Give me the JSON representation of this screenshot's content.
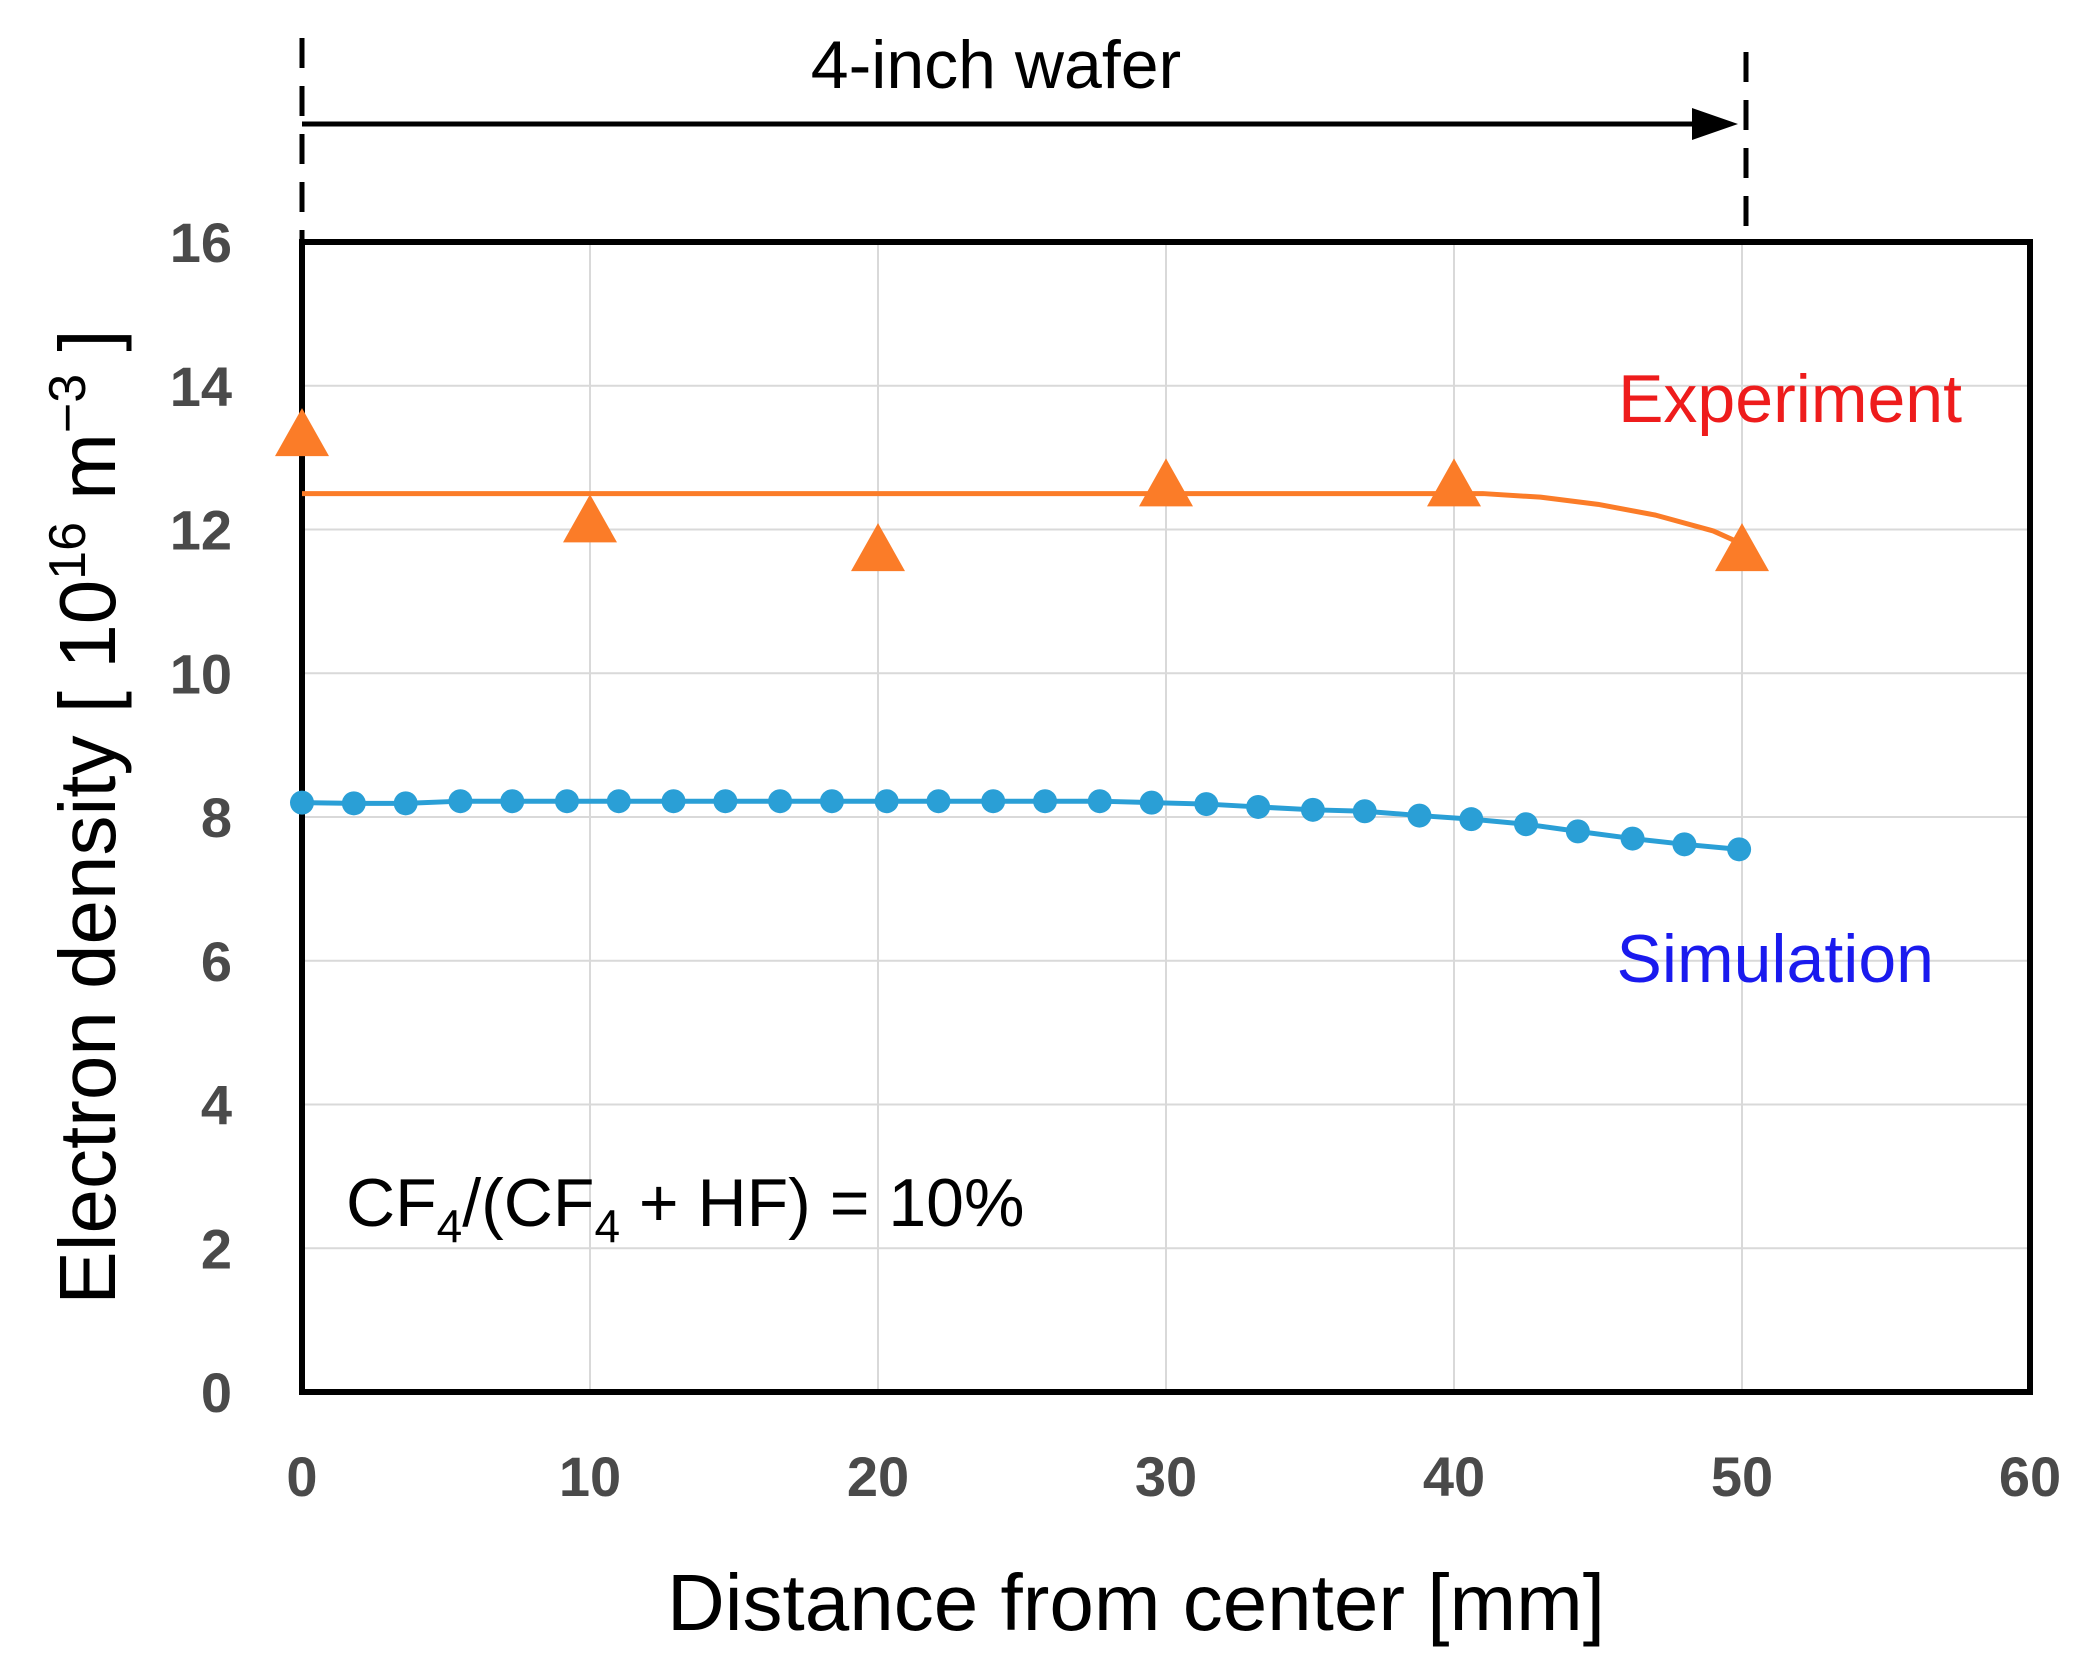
{
  "chart_data": {
    "type": "line",
    "xlabel": "Distance from center [mm]",
    "ylabel": {
      "prefix": "Electron density [ 10",
      "exp1": "16",
      "mid": " m",
      "exp2": "−3",
      "suffix": " ]"
    },
    "xlim": [
      0,
      60
    ],
    "ylim": [
      0,
      16
    ],
    "xticks": [
      0,
      10,
      20,
      30,
      40,
      50,
      60
    ],
    "yticks": [
      0,
      2,
      4,
      6,
      8,
      10,
      12,
      14,
      16
    ],
    "grid": true,
    "series": [
      {
        "name": "Experiment",
        "label_text": "Experiment",
        "label_color": "#ee1c1c",
        "color": "#fb7c28",
        "marker": "triangle",
        "points": [
          {
            "x": 0,
            "y": 13.3
          },
          {
            "x": 10,
            "y": 12.1
          },
          {
            "x": 20,
            "y": 11.7
          },
          {
            "x": 30,
            "y": 12.6
          },
          {
            "x": 40,
            "y": 12.6
          },
          {
            "x": 50,
            "y": 11.7
          }
        ],
        "fit_line": [
          {
            "x": 0,
            "y": 12.5
          },
          {
            "x": 41,
            "y": 12.5
          },
          {
            "x": 43,
            "y": 12.45
          },
          {
            "x": 45,
            "y": 12.35
          },
          {
            "x": 47,
            "y": 12.2
          },
          {
            "x": 49,
            "y": 11.98
          },
          {
            "x": 50,
            "y": 11.8
          }
        ]
      },
      {
        "name": "Simulation",
        "label_text": "Simulation",
        "label_color": "#1a1aee",
        "color": "#2a9fd6",
        "marker": "circle",
        "points": [
          {
            "x": 0,
            "y": 8.2
          },
          {
            "x": 1.8,
            "y": 8.19
          },
          {
            "x": 3.6,
            "y": 8.19
          },
          {
            "x": 5.5,
            "y": 8.22
          },
          {
            "x": 7.3,
            "y": 8.22
          },
          {
            "x": 9.2,
            "y": 8.22
          },
          {
            "x": 11.0,
            "y": 8.22
          },
          {
            "x": 12.9,
            "y": 8.22
          },
          {
            "x": 14.7,
            "y": 8.22
          },
          {
            "x": 16.6,
            "y": 8.22
          },
          {
            "x": 18.4,
            "y": 8.22
          },
          {
            "x": 20.3,
            "y": 8.22
          },
          {
            "x": 22.1,
            "y": 8.22
          },
          {
            "x": 24.0,
            "y": 8.22
          },
          {
            "x": 25.8,
            "y": 8.22
          },
          {
            "x": 27.7,
            "y": 8.22
          },
          {
            "x": 29.5,
            "y": 8.2
          },
          {
            "x": 31.4,
            "y": 8.18
          },
          {
            "x": 33.2,
            "y": 8.14
          },
          {
            "x": 35.1,
            "y": 8.1
          },
          {
            "x": 36.9,
            "y": 8.08
          },
          {
            "x": 38.8,
            "y": 8.02
          },
          {
            "x": 40.6,
            "y": 7.97
          },
          {
            "x": 42.5,
            "y": 7.9
          },
          {
            "x": 44.3,
            "y": 7.8
          },
          {
            "x": 46.2,
            "y": 7.7
          },
          {
            "x": 48.0,
            "y": 7.62
          },
          {
            "x": 49.9,
            "y": 7.55
          }
        ]
      }
    ],
    "annotations": {
      "wafer_label": "4-inch wafer",
      "wafer_span_mm": [
        0,
        50
      ],
      "condition": {
        "part1": "CF",
        "sub1": "4",
        "part2": "/(CF",
        "sub2": "4",
        "part3": " + HF) = 10%"
      }
    }
  }
}
